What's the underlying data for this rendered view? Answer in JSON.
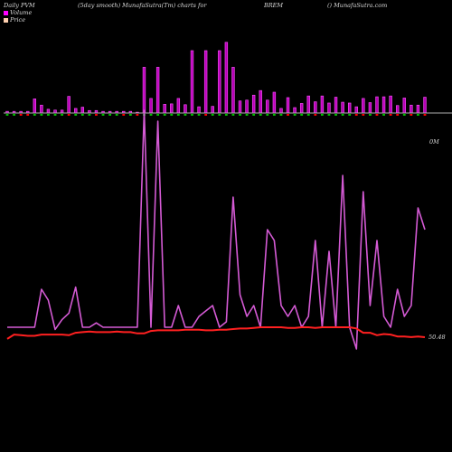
{
  "header": {
    "left": "Daily PVM",
    "mid": "(5day smooth) MunafaSutra(Tm) charts for",
    "symbol": "BREM",
    "site": "() MunafaSutra.com"
  },
  "legend": {
    "volume_label": "Volume",
    "price_label": "Price",
    "volume_color": "#ff00ff",
    "price_color": "#ffd0b0"
  },
  "labels": {
    "pvm_top": "0M",
    "price_last": "50.48"
  },
  "colors": {
    "pvm_line": "#d45ad4",
    "price_line": "#ff2020",
    "bar_fill": "#b800b8",
    "bar_edge": "#ff55ff",
    "up_tick": "#00c000",
    "down_tick": "#ff0000",
    "zero_line": "#b0b0b0"
  },
  "chart_data": {
    "type": "bar",
    "note_series": "volume bars above the zero line, PVM line and price line below",
    "series": [
      {
        "name": "Volume",
        "values": [
          4,
          4,
          4,
          4,
          34,
          19,
          9,
          7,
          7,
          40,
          11,
          14,
          6,
          6,
          4,
          4,
          4,
          4,
          4,
          2,
          110,
          35,
          110,
          21,
          22,
          35,
          20,
          150,
          15,
          150,
          16,
          150,
          170,
          110,
          29,
          31,
          43,
          54,
          31,
          50,
          11,
          37,
          13,
          23,
          41,
          27,
          41,
          24,
          38,
          26,
          24,
          15,
          35,
          25,
          39,
          39,
          41,
          18,
          36,
          19,
          19,
          38
        ]
      },
      {
        "name": "PVM",
        "values": [
          -30,
          -30,
          -30,
          -30,
          -30,
          5,
          -5,
          -32,
          -23,
          -17,
          7,
          -30,
          -30,
          -26,
          -30,
          -30,
          -30,
          -30,
          -30,
          -30,
          170,
          -30,
          160,
          -30,
          -30,
          -10,
          -30,
          -30,
          -20,
          -15,
          -10,
          -30,
          -25,
          90,
          0,
          -20,
          -10,
          -30,
          60,
          50,
          -10,
          -20,
          -10,
          -30,
          -20,
          50,
          -30,
          40,
          -30,
          110,
          -30,
          -50,
          95,
          -10,
          50,
          -20,
          -30,
          5,
          -20,
          -10,
          80,
          60
        ]
      },
      {
        "name": "Price",
        "values": [
          50.2,
          50.9,
          50.8,
          50.7,
          50.7,
          50.9,
          50.9,
          50.9,
          50.9,
          50.8,
          51.2,
          51.3,
          51.4,
          51.3,
          51.3,
          51.3,
          51.4,
          51.3,
          51.3,
          51.1,
          51.1,
          51.5,
          51.6,
          51.6,
          51.6,
          51.6,
          51.7,
          51.7,
          51.7,
          51.6,
          51.6,
          51.7,
          51.7,
          51.8,
          51.9,
          51.9,
          52.0,
          52.1,
          52.1,
          52.1,
          52.1,
          52.0,
          52.0,
          52.1,
          52.1,
          52.0,
          52.1,
          52.1,
          52.1,
          52.1,
          52.1,
          51.9,
          51.2,
          51.2,
          50.8,
          51.0,
          50.9,
          50.6,
          50.6,
          50.5,
          50.6,
          50.48
        ]
      }
    ]
  }
}
